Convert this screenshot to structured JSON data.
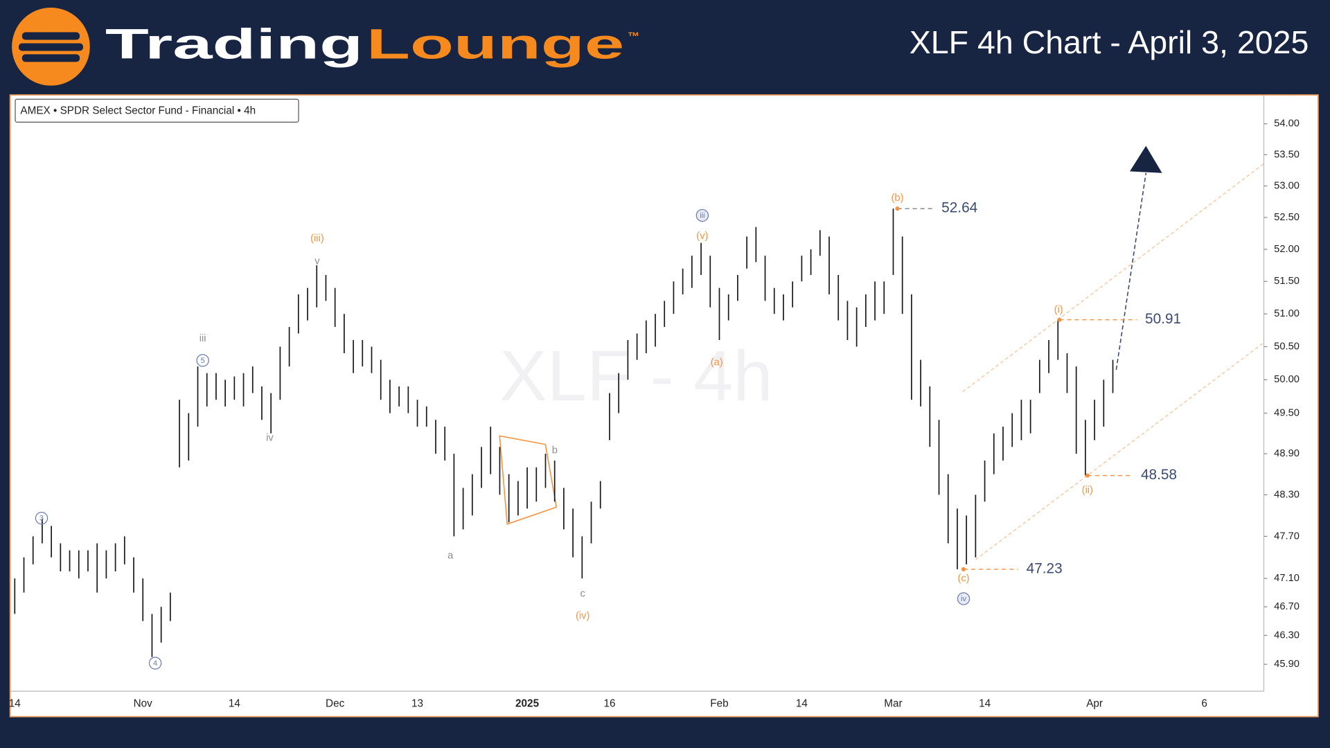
{
  "header": {
    "logo_left": "Trading",
    "logo_right": "Lounge",
    "trademark": "™",
    "title": "XLF 4h Chart - April 3, 2025"
  },
  "chart_data": {
    "type": "range_bar",
    "symbol_label": "AMEX • SPDR Select Sector Fund - Financial • 4h",
    "watermark": "XLF - 4h",
    "color": "#1a1a1a",
    "log_scale": true,
    "grid": false,
    "ylim": [
      45.53,
      54.47
    ],
    "yticks": [
      {
        "value": 54.0,
        "label": "54.00"
      },
      {
        "value": 53.5,
        "label": "53.50"
      },
      {
        "value": 53.0,
        "label": "53.00"
      },
      {
        "value": 52.5,
        "label": "52.50"
      },
      {
        "value": 52.0,
        "label": "52.00"
      },
      {
        "value": 51.5,
        "label": "51.50"
      },
      {
        "value": 51.0,
        "label": "51.00"
      },
      {
        "value": 50.5,
        "label": "50.50"
      },
      {
        "value": 50.0,
        "label": "50.00"
      },
      {
        "value": 49.5,
        "label": "49.50"
      },
      {
        "value": 48.9,
        "label": "48.90"
      },
      {
        "value": 48.3,
        "label": "48.30"
      },
      {
        "value": 47.7,
        "label": "47.70"
      },
      {
        "value": 47.1,
        "label": "47.10"
      },
      {
        "value": 46.7,
        "label": "46.70"
      },
      {
        "value": 46.3,
        "label": "46.30"
      },
      {
        "value": 45.9,
        "label": "45.90"
      }
    ],
    "categories": [
      "14",
      null,
      null,
      null,
      null,
      null,
      null,
      null,
      null,
      null,
      null,
      null,
      null,
      null,
      "Nov",
      null,
      null,
      null,
      null,
      null,
      null,
      null,
      null,
      null,
      "14",
      null,
      null,
      null,
      null,
      null,
      null,
      null,
      null,
      null,
      null,
      "Dec",
      null,
      null,
      null,
      null,
      null,
      null,
      null,
      null,
      "13",
      null,
      null,
      null,
      null,
      null,
      null,
      null,
      null,
      null,
      null,
      null,
      "2025",
      null,
      null,
      null,
      null,
      null,
      null,
      null,
      null,
      "16",
      null,
      null,
      null,
      null,
      null,
      null,
      null,
      null,
      null,
      null,
      null,
      "Feb",
      null,
      null,
      null,
      null,
      null,
      null,
      null,
      null,
      "14",
      null,
      null,
      null,
      null,
      null,
      null,
      null,
      null,
      null,
      "Mar",
      null,
      null,
      null,
      null,
      null,
      null,
      null,
      null,
      null,
      "14",
      null,
      null,
      null,
      null,
      null,
      null,
      null,
      null,
      null,
      null,
      null,
      "Apr",
      null,
      null,
      null,
      null,
      null,
      null,
      null,
      null,
      null,
      null,
      null,
      "6",
      null,
      null,
      null,
      null,
      null,
      null
    ],
    "high": [
      47.1,
      47.4,
      47.7,
      47.95,
      47.85,
      47.6,
      47.5,
      47.5,
      47.5,
      47.6,
      47.5,
      47.6,
      47.7,
      47.4,
      47.1,
      46.6,
      46.7,
      46.9,
      49.7,
      49.5,
      50.2,
      50.1,
      50.1,
      50.0,
      50.05,
      50.1,
      50.2,
      49.9,
      49.8,
      50.5,
      50.8,
      51.3,
      51.4,
      51.75,
      51.6,
      51.4,
      51.0,
      50.6,
      50.6,
      50.5,
      50.3,
      50.0,
      49.9,
      49.9,
      49.7,
      49.6,
      49.4,
      49.3,
      48.9,
      48.4,
      48.6,
      49.0,
      49.3,
      49.0,
      48.6,
      48.5,
      48.7,
      48.7,
      48.9,
      48.8,
      48.4,
      48.1,
      47.7,
      48.2,
      48.5,
      49.8,
      50.1,
      50.6,
      50.7,
      50.9,
      51.0,
      51.2,
      51.5,
      51.7,
      51.9,
      52.1,
      51.9,
      51.4,
      51.3,
      51.6,
      52.2,
      52.35,
      51.9,
      51.4,
      51.3,
      51.5,
      51.9,
      52.0,
      52.3,
      52.2,
      51.6,
      51.2,
      51.1,
      51.3,
      51.5,
      51.5,
      52.64,
      52.2,
      51.3,
      50.3,
      49.9,
      49.4,
      48.6,
      48.1,
      48.0,
      48.3,
      48.8,
      49.2,
      49.3,
      49.5,
      49.7,
      49.7,
      50.3,
      50.6,
      50.91,
      50.4,
      50.2,
      49.4,
      49.7,
      50.0,
      50.3,
      null,
      null,
      null,
      null,
      null,
      null,
      null,
      null,
      null,
      null,
      null,
      null,
      null,
      null,
      null,
      null
    ],
    "low": [
      46.6,
      46.9,
      47.3,
      47.6,
      47.4,
      47.2,
      47.2,
      47.1,
      47.2,
      46.9,
      47.1,
      47.2,
      47.3,
      46.9,
      46.5,
      46.0,
      46.2,
      46.5,
      48.7,
      48.8,
      49.3,
      49.6,
      49.7,
      49.6,
      49.7,
      49.6,
      49.8,
      49.4,
      49.2,
      49.7,
      50.2,
      50.7,
      50.9,
      51.1,
      51.2,
      50.8,
      50.4,
      50.1,
      50.2,
      50.1,
      49.7,
      49.5,
      49.6,
      49.5,
      49.3,
      49.3,
      48.9,
      48.8,
      47.7,
      47.8,
      48.0,
      48.4,
      48.6,
      48.3,
      47.9,
      48.0,
      48.1,
      48.2,
      48.4,
      48.2,
      47.8,
      47.4,
      47.1,
      47.6,
      48.1,
      49.1,
      49.5,
      50.0,
      50.3,
      50.4,
      50.5,
      50.8,
      51.0,
      51.3,
      51.4,
      51.6,
      51.1,
      50.6,
      50.9,
      51.2,
      51.7,
      51.8,
      51.2,
      51.0,
      50.9,
      51.1,
      51.5,
      51.6,
      51.9,
      51.3,
      50.9,
      50.6,
      50.5,
      50.8,
      50.9,
      51.0,
      51.6,
      51.0,
      49.7,
      49.6,
      49.0,
      48.3,
      47.6,
      47.23,
      47.3,
      47.4,
      48.2,
      48.6,
      48.8,
      49.0,
      49.1,
      49.2,
      49.8,
      50.1,
      50.3,
      49.8,
      48.9,
      48.58,
      49.1,
      49.3,
      49.8,
      null,
      null,
      null,
      null,
      null,
      null,
      null,
      null,
      null,
      null,
      null,
      null,
      null,
      null,
      null,
      null
    ],
    "price_levels": [
      52.64,
      50.91,
      48.58,
      47.23
    ],
    "price_level_color": "#3a4a72",
    "annotations": [
      {
        "text": "3",
        "color": "#6a7bb0",
        "circled": true
      },
      {
        "text": "4",
        "color": "#6a7bb0",
        "circled": true
      },
      {
        "text": "5",
        "color": "#6a7bb0",
        "circled": true
      },
      {
        "text": "iii",
        "color": "#8c8c8c",
        "circled": false
      },
      {
        "text": "iv",
        "color": "#8c8c8c",
        "circled": false
      },
      {
        "text": "v",
        "color": "#8c8c8c",
        "circled": false
      },
      {
        "text": "(iii)",
        "color": "#f5923e",
        "circled": false
      },
      {
        "text": "a",
        "color": "#8c8c8c",
        "circled": false
      },
      {
        "text": "b",
        "color": "#8c8c8c",
        "circled": false
      },
      {
        "text": "c",
        "color": "#8c8c8c",
        "circled": false
      },
      {
        "text": "(iv)",
        "color": "#f5923e",
        "circled": false
      },
      {
        "text": "iii",
        "color": "#6a7bb0",
        "circled": true
      },
      {
        "text": "(v)",
        "color": "#f5923e",
        "circled": false
      },
      {
        "text": "(a)",
        "color": "#f5923e",
        "circled": false
      },
      {
        "text": "(b)",
        "color": "#f5923e",
        "circled": false
      },
      {
        "text": "(c)",
        "color": "#f5923e",
        "circled": false
      },
      {
        "text": "iv",
        "color": "#6a7bb0",
        "circled": true
      },
      {
        "text": "(i)",
        "color": "#f5923e",
        "circled": false
      },
      {
        "text": "(ii)",
        "color": "#f5923e",
        "circled": false
      }
    ]
  }
}
